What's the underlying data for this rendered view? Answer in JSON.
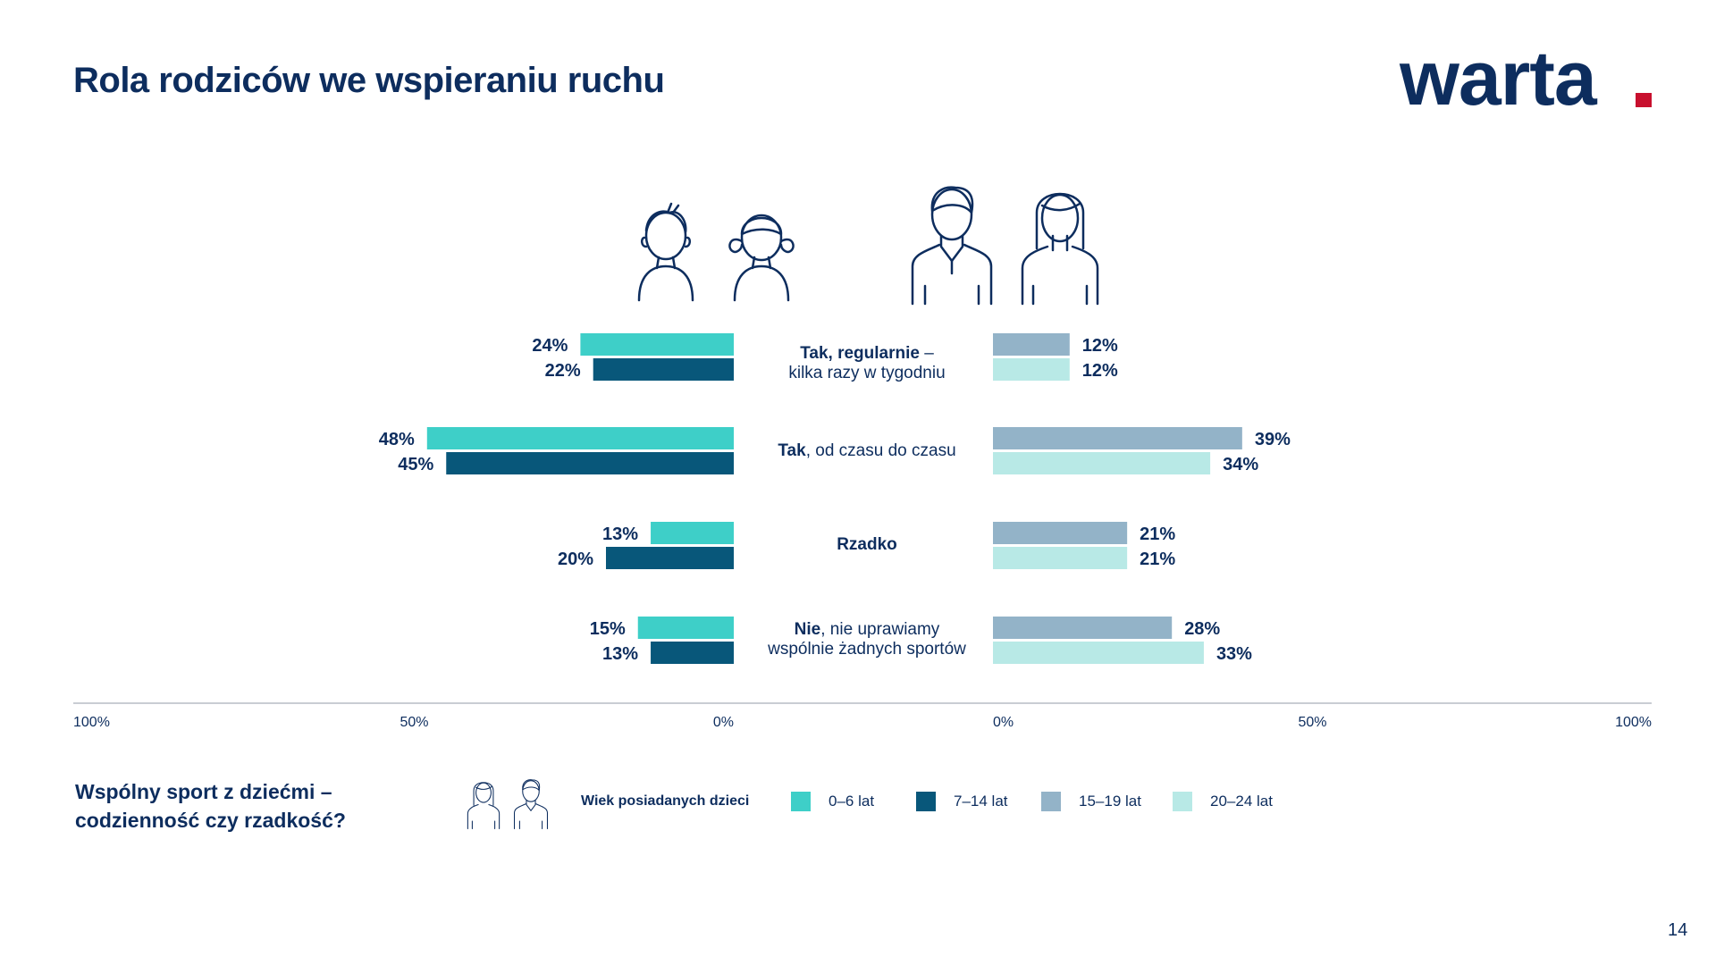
{
  "slide": {
    "title": "Rola rodziców we wspieraniu ruchu",
    "logo_text": "warta",
    "page_number": "14",
    "question_line1": "Wspólny sport z dziećmi –",
    "question_line2": "codzienność czy rzadkość?"
  },
  "legend": {
    "title": "Wiek posiadanych dzieci",
    "items": [
      "0–6 lat",
      "7–14 lat",
      "15–19 lat",
      "20–24 lat"
    ]
  },
  "categories": [
    {
      "bold": "Tak, regularnie",
      "rest": " –",
      "line2": "kilka razy w tygodniu"
    },
    {
      "bold": "Tak",
      "rest": ", od czasu do czasu",
      "line2": ""
    },
    {
      "bold": "Rzadko",
      "rest": "",
      "line2": ""
    },
    {
      "bold": "Nie",
      "rest": ", nie uprawiamy",
      "line2": "wspólnie żadnych sportów"
    }
  ],
  "chart_data": {
    "type": "bar",
    "orientation": "horizontal-butterfly",
    "categories": [
      "Tak, regularnie – kilka razy w tygodniu",
      "Tak, od czasu do czasu",
      "Rzadko",
      "Nie, nie uprawiamy wspólnie żadnych sportów"
    ],
    "series": [
      {
        "name": "0–6 lat",
        "side": "left",
        "color": "#3ecfc8",
        "values": [
          24,
          48,
          13,
          15
        ],
        "labels": [
          "24%",
          "48%",
          "13%",
          "15%"
        ]
      },
      {
        "name": "7–14 lat",
        "side": "left",
        "color": "#08577a",
        "values": [
          22,
          45,
          20,
          13
        ],
        "labels": [
          "22%",
          "45%",
          "20%",
          "13%"
        ]
      },
      {
        "name": "15–19 lat",
        "side": "right",
        "color": "#93b3c8",
        "values": [
          12,
          39,
          21,
          28
        ],
        "labels": [
          "12%",
          "39%",
          "21%",
          "28%"
        ]
      },
      {
        "name": "20–24 lat",
        "side": "right",
        "color": "#b8e9e6",
        "values": [
          12,
          34,
          21,
          33
        ],
        "labels": [
          "12%",
          "34%",
          "21%",
          "33%"
        ]
      }
    ],
    "left_axis_ticks": [
      "100%",
      "50%",
      "0%"
    ],
    "right_axis_ticks": [
      "0%",
      "50%",
      "100%"
    ],
    "xlim": [
      0,
      100
    ],
    "unit": "%"
  },
  "colors": {
    "navy": "#0d2d5e",
    "logo_accent": "#c8102e",
    "axis_line": "#c9cdd3"
  }
}
